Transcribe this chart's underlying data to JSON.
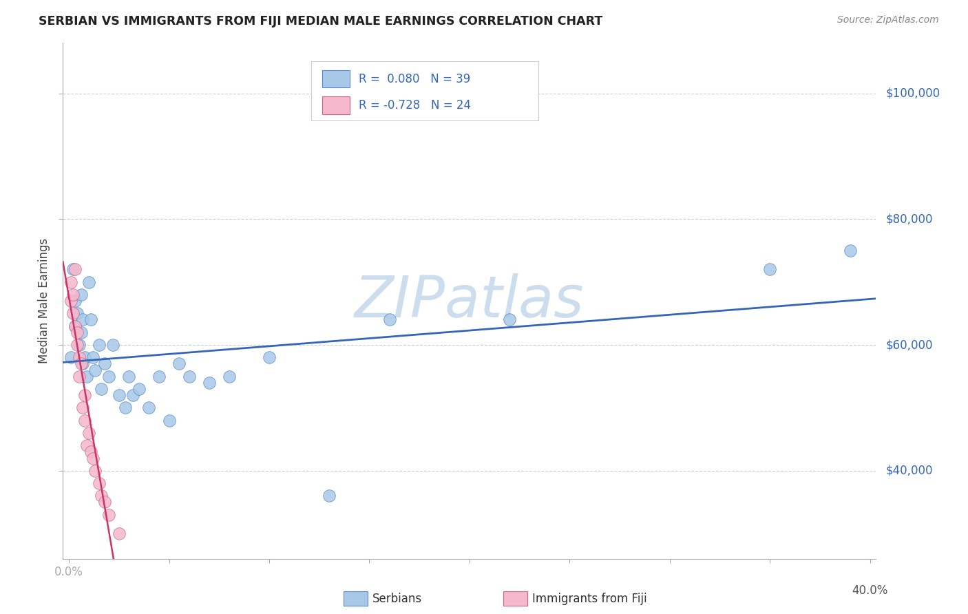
{
  "title": "SERBIAN VS IMMIGRANTS FROM FIJI MEDIAN MALE EARNINGS CORRELATION CHART",
  "source": "Source: ZipAtlas.com",
  "ylabel": "Median Male Earnings",
  "ytick_values": [
    40000,
    60000,
    80000,
    100000
  ],
  "ytick_labels": [
    "$40,000",
    "$60,000",
    "$80,000",
    "$100,000"
  ],
  "ylim": [
    26000,
    108000
  ],
  "xlim": [
    -0.003,
    0.403
  ],
  "serbian_color": "#a8c8e8",
  "serbian_edge_color": "#5588cc",
  "fiji_color": "#f5b8cc",
  "fiji_edge_color": "#cc6688",
  "serbian_line_color": "#3366bb",
  "fiji_line_color": "#cc3366",
  "watermark_text": "ZIPatlas",
  "watermark_color": "#ccdded",
  "grid_color": "#cccccc",
  "bg_color": "#ffffff",
  "title_color": "#222222",
  "source_color": "#888888",
  "label_color": "#3366bb",
  "axis_color": "#aaaaaa",
  "tick_label_color": "#555555",
  "serbian_x": [
    0.001,
    0.002,
    0.003,
    0.003,
    0.004,
    0.005,
    0.006,
    0.006,
    0.007,
    0.007,
    0.008,
    0.009,
    0.01,
    0.011,
    0.012,
    0.013,
    0.015,
    0.016,
    0.018,
    0.02,
    0.022,
    0.025,
    0.028,
    0.03,
    0.032,
    0.035,
    0.04,
    0.045,
    0.05,
    0.055,
    0.06,
    0.07,
    0.08,
    0.1,
    0.13,
    0.16,
    0.22,
    0.35,
    0.39
  ],
  "serbian_y": [
    58000,
    72000,
    63000,
    67000,
    65000,
    60000,
    68000,
    62000,
    64000,
    57000,
    58000,
    55000,
    70000,
    64000,
    58000,
    56000,
    60000,
    53000,
    57000,
    55000,
    60000,
    52000,
    50000,
    55000,
    52000,
    53000,
    50000,
    55000,
    48000,
    57000,
    55000,
    54000,
    55000,
    58000,
    36000,
    64000,
    64000,
    72000,
    75000
  ],
  "fiji_x": [
    0.001,
    0.001,
    0.002,
    0.002,
    0.003,
    0.003,
    0.004,
    0.004,
    0.005,
    0.005,
    0.006,
    0.007,
    0.008,
    0.008,
    0.009,
    0.01,
    0.011,
    0.012,
    0.013,
    0.015,
    0.016,
    0.018,
    0.02,
    0.025
  ],
  "fiji_y": [
    70000,
    67000,
    68000,
    65000,
    63000,
    72000,
    62000,
    60000,
    58000,
    55000,
    57000,
    50000,
    52000,
    48000,
    44000,
    46000,
    43000,
    42000,
    40000,
    38000,
    36000,
    35000,
    33000,
    30000
  ],
  "xtick_positions": [
    0.0,
    0.05,
    0.1,
    0.15,
    0.2,
    0.25,
    0.3,
    0.35,
    0.4
  ],
  "xtick_show_label": [
    true,
    false,
    false,
    false,
    false,
    false,
    false,
    false,
    false
  ],
  "legend_text1": "R =  0.080   N = 39",
  "legend_text2": "R = -0.728   N = 24",
  "legend_color1": "#3366bb",
  "legend_color2": "#3366bb",
  "bottom_label1": "Serbians",
  "bottom_label2": "Immigrants from Fiji"
}
